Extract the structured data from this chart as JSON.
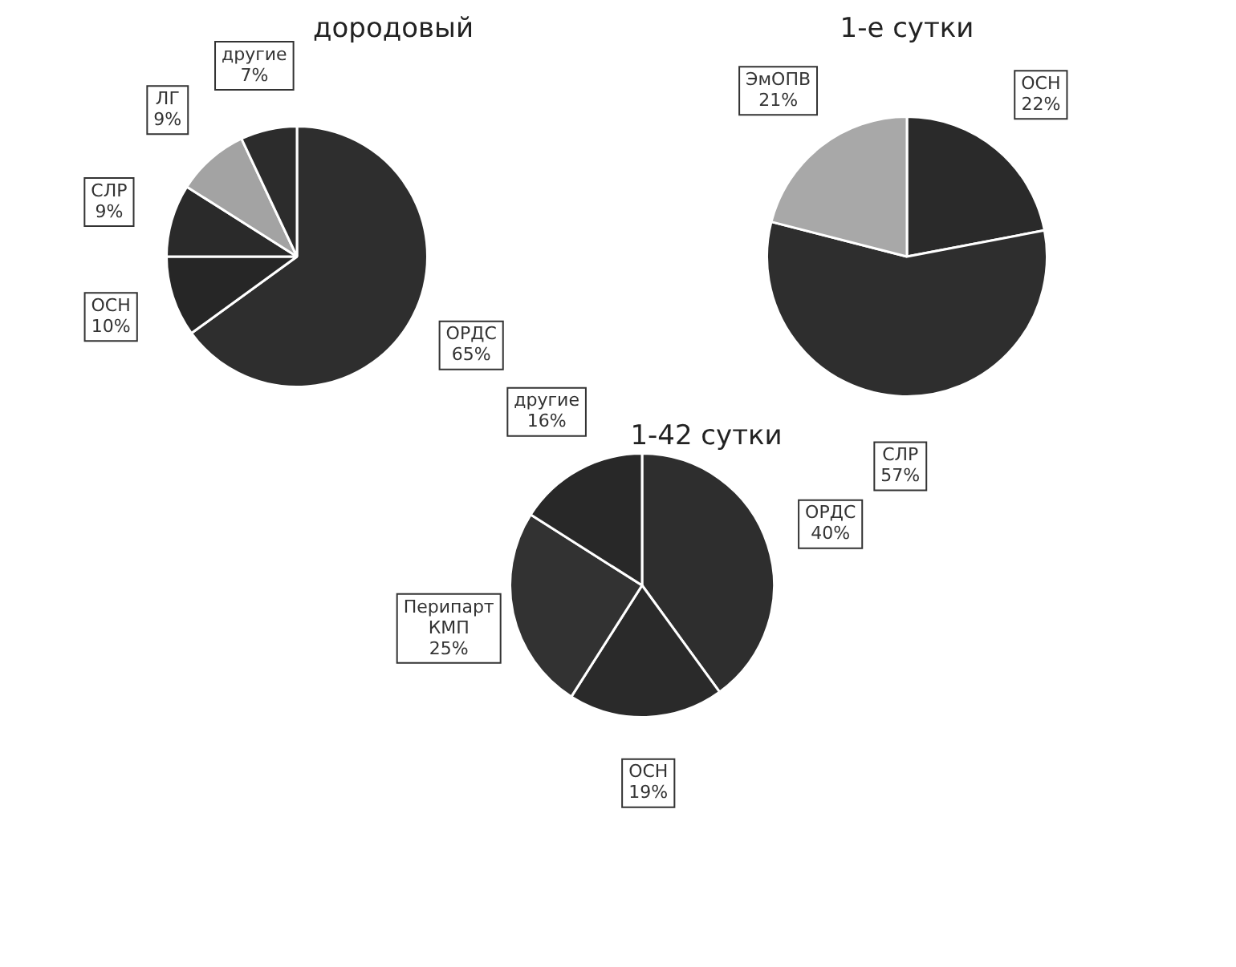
{
  "chart_data": [
    {
      "type": "pie",
      "title": "дородовый",
      "categories": [
        "ОРДС",
        "ОСН",
        "СЛР",
        "ЛГ",
        "другие"
      ],
      "values": [
        65,
        10,
        9,
        9,
        7
      ],
      "colors": [
        "#2e2e2e",
        "#262626",
        "#2a2a2a",
        "#a3a3a3",
        "#2c2c2c"
      ],
      "value_labels": [
        "65%",
        "10%",
        "9%",
        "9%",
        "7%"
      ]
    },
    {
      "type": "pie",
      "title": "1-е сутки",
      "categories": [
        "ОСН",
        "СЛР",
        "ЭмОПВ"
      ],
      "values": [
        22,
        57,
        21
      ],
      "colors": [
        "#2a2a2a",
        "#2e2e2e",
        "#a8a8a8"
      ],
      "value_labels": [
        "22%",
        "57%",
        "21%"
      ]
    },
    {
      "type": "pie",
      "title": "1-42 сутки",
      "categories": [
        "ОРДС",
        "ОСН",
        "Перипарт КМП",
        "другие"
      ],
      "values": [
        40,
        19,
        25,
        16
      ],
      "colors": [
        "#2e2e2e",
        "#2a2a2a",
        "#323232",
        "#282828"
      ],
      "value_labels": [
        "40%",
        "19%",
        "25%",
        "16%"
      ]
    }
  ]
}
